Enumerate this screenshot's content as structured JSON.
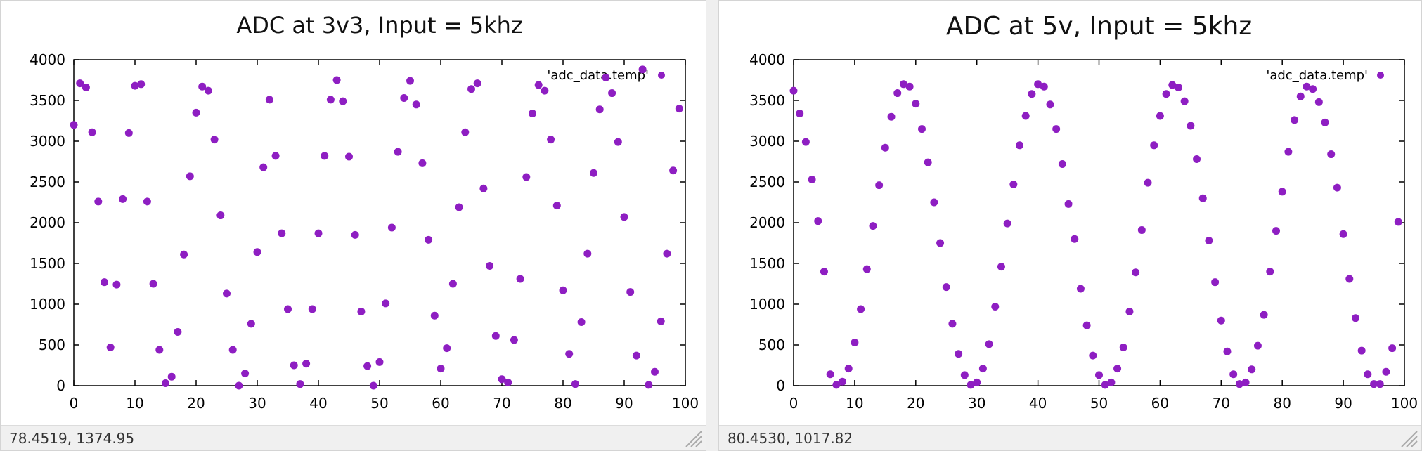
{
  "plots": [
    {
      "status": "78.4519,  1374.95",
      "chart_data": {
        "type": "scatter",
        "title": "ADC at 3v3, Input = 5khz",
        "legend": "'adc_data.temp'",
        "legend_position": "top-right",
        "xlim": [
          0,
          100
        ],
        "ylim": [
          0,
          4000
        ],
        "xticks": [
          0,
          10,
          20,
          30,
          40,
          50,
          60,
          70,
          80,
          90,
          100
        ],
        "yticks": [
          0,
          500,
          1000,
          1500,
          2000,
          2500,
          3000,
          3500,
          4000
        ],
        "grid": false,
        "color": "#8e1ec2",
        "series": [
          {
            "x": [
              0,
              1,
              2,
              3,
              4,
              5,
              6,
              7,
              8,
              9,
              10,
              11,
              12,
              13,
              14,
              15,
              16,
              17,
              18,
              19,
              20,
              21,
              22,
              23,
              24,
              25,
              26,
              27,
              28,
              29,
              30,
              31,
              32,
              33,
              34,
              35,
              36,
              37,
              38,
              39,
              40,
              41,
              42,
              43,
              44,
              45,
              46,
              47,
              48,
              49,
              50,
              51,
              52,
              53,
              54,
              55,
              56,
              57,
              58,
              59,
              60,
              61,
              62,
              63,
              64,
              65,
              66,
              67,
              68,
              69,
              70,
              71,
              72,
              73,
              74,
              75,
              76,
              77,
              78,
              79,
              80,
              81,
              82,
              83,
              84,
              85,
              86,
              87,
              88,
              89,
              90,
              91,
              92,
              93,
              94,
              95,
              96,
              97,
              98,
              99
            ],
            "y": [
              3200,
              3710,
              3660,
              3110,
              2260,
              1270,
              470,
              1240,
              2290,
              3100,
              3680,
              3700,
              2260,
              1250,
              440,
              30,
              110,
              660,
              1610,
              2570,
              3350,
              3670,
              3620,
              3020,
              2090,
              1130,
              440,
              0,
              150,
              760,
              1640,
              2680,
              3510,
              2820,
              1870,
              940,
              250,
              20,
              270,
              940,
              1870,
              2820,
              3510,
              3750,
              3490,
              2810,
              1850,
              910,
              240,
              0,
              290,
              1010,
              1940,
              2870,
              3530,
              3740,
              3450,
              2730,
              1790,
              860,
              210,
              460,
              1250,
              2190,
              3110,
              3640,
              3710,
              2420,
              1470,
              610,
              80,
              40,
              560,
              1310,
              2560,
              3340,
              3690,
              3620,
              3020,
              2210,
              1170,
              390,
              20,
              780,
              1620,
              2610,
              3390,
              3780,
              3590,
              2990,
              2070,
              1150,
              370,
              3880,
              10,
              170,
              790,
              1620,
              2640,
              3400
            ]
          }
        ]
      }
    },
    {
      "status": "80.4530,  1017.82",
      "chart_data": {
        "type": "scatter",
        "title": "ADC at 5v, Input = 5khz",
        "legend": "'adc_data.temp'",
        "legend_position": "top-right",
        "xlim": [
          0,
          100
        ],
        "ylim": [
          0,
          4000
        ],
        "xticks": [
          0,
          10,
          20,
          30,
          40,
          50,
          60,
          70,
          80,
          90,
          100
        ],
        "yticks": [
          0,
          500,
          1000,
          1500,
          2000,
          2500,
          3000,
          3500,
          4000
        ],
        "grid": false,
        "color": "#8e1ec2",
        "series": [
          {
            "x": [
              0,
              1,
              2,
              3,
              4,
              5,
              6,
              7,
              8,
              9,
              10,
              11,
              12,
              13,
              14,
              15,
              16,
              17,
              18,
              19,
              20,
              21,
              22,
              23,
              24,
              25,
              26,
              27,
              28,
              29,
              30,
              31,
              32,
              33,
              34,
              35,
              36,
              37,
              38,
              39,
              40,
              41,
              42,
              43,
              44,
              45,
              46,
              47,
              48,
              49,
              50,
              51,
              52,
              53,
              54,
              55,
              56,
              57,
              58,
              59,
              60,
              61,
              62,
              63,
              64,
              65,
              66,
              67,
              68,
              69,
              70,
              71,
              72,
              73,
              74,
              75,
              76,
              77,
              78,
              79,
              80,
              81,
              82,
              83,
              84,
              85,
              86,
              87,
              88,
              89,
              90,
              91,
              92,
              93,
              94,
              95,
              96,
              97,
              98,
              99
            ],
            "y": [
              3620,
              3340,
              2990,
              2530,
              2020,
              1400,
              140,
              10,
              50,
              210,
              530,
              940,
              1430,
              1960,
              2460,
              2920,
              3300,
              3590,
              3700,
              3670,
              3460,
              3150,
              2740,
              2250,
              1750,
              1210,
              760,
              390,
              130,
              10,
              40,
              210,
              510,
              970,
              1460,
              1990,
              2470,
              2950,
              3310,
              3580,
              3700,
              3670,
              3450,
              3150,
              2720,
              2230,
              1800,
              1190,
              740,
              370,
              130,
              10,
              40,
              210,
              470,
              910,
              1390,
              1910,
              2490,
              2950,
              3310,
              3580,
              3690,
              3660,
              3490,
              3190,
              2780,
              2300,
              1780,
              1270,
              800,
              420,
              140,
              20,
              40,
              200,
              490,
              870,
              1400,
              1900,
              2380,
              2870,
              3260,
              3550,
              3670,
              3640,
              3480,
              3230,
              2840,
              2430,
              1860,
              1310,
              830,
              430,
              140,
              20,
              20,
              170,
              460,
              2010
            ]
          }
        ]
      }
    }
  ]
}
